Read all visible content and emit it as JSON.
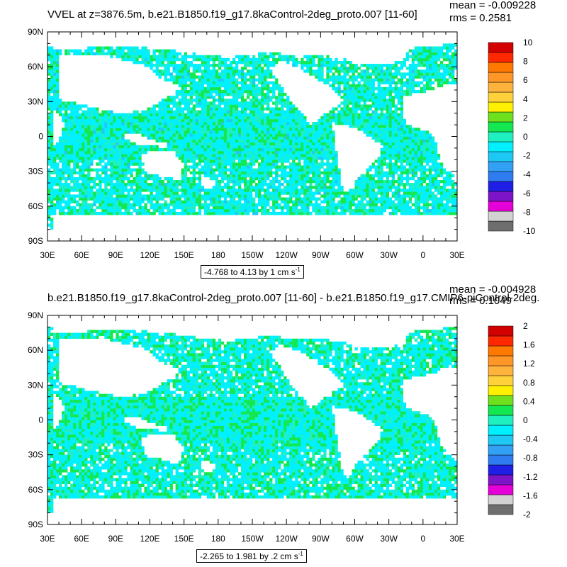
{
  "chart_data": [
    {
      "type": "heatmap",
      "title": "VVEL at z=3876.5m, b.e21.B1850.f19_g17.8kaControl-2deg_proto.007 [11-60]",
      "stats": {
        "mean": "mean = -0.009228",
        "rms": "rms = 0.2581"
      },
      "info_label": "-4.768 to 4.13 by 1 cm s",
      "info_sup": "-1",
      "x_ticks": [
        "30E",
        "60E",
        "90E",
        "120E",
        "150E",
        "180",
        "150W",
        "120W",
        "90W",
        "60W",
        "30W",
        "0",
        "30E"
      ],
      "y_ticks": [
        "90N",
        "60N",
        "30N",
        "0",
        "30S",
        "60S",
        "90S"
      ],
      "colorbar": {
        "colors": [
          "#6e6e6e",
          "#d2d2d2",
          "#e600d8",
          "#7e14c8",
          "#1f1fe6",
          "#2f7cf0",
          "#32a0f5",
          "#1ec8f5",
          "#00f0ff",
          "#1ef0c0",
          "#14e850",
          "#6ee01e",
          "#fff000",
          "#ffd23c",
          "#ffb23c",
          "#ff9628",
          "#ff7800",
          "#ff2800",
          "#d20000"
        ],
        "labels": [
          "10",
          "8",
          "6",
          "4",
          "2",
          "0",
          "-2",
          "-4",
          "-6",
          "-8",
          "-10"
        ]
      },
      "fill_colors": [
        "#00f0ff",
        "#1ef0c0",
        "#14e850",
        "#1ec8f5"
      ],
      "range": [
        -4.768,
        4.13
      ]
    },
    {
      "type": "heatmap",
      "title": "b.e21.B1850.f19_g17.8kaControl-2deg_proto.007 [11-60] - b.e21.B1850.f19_g17.CMIP6-piControl-2deg.",
      "stats": {
        "mean": "mean = -0.004928",
        "rms": "rms = 0.1049"
      },
      "info_label": "-2.265 to 1.981 by .2 cm s",
      "info_sup": "-1",
      "x_ticks": [
        "30E",
        "60E",
        "90E",
        "120E",
        "150E",
        "180",
        "150W",
        "120W",
        "90W",
        "60W",
        "30W",
        "0",
        "30E"
      ],
      "y_ticks": [
        "90N",
        "60N",
        "30N",
        "0",
        "30S",
        "60S",
        "90S"
      ],
      "colorbar": {
        "colors": [
          "#6e6e6e",
          "#d2d2d2",
          "#e600d8",
          "#7e14c8",
          "#1f1fe6",
          "#2f7cf0",
          "#32a0f5",
          "#1ec8f5",
          "#00f0ff",
          "#1ef0c0",
          "#14e850",
          "#6ee01e",
          "#fff000",
          "#ffd23c",
          "#ffb23c",
          "#ff9628",
          "#ff7800",
          "#ff2800",
          "#d20000"
        ],
        "labels": [
          "2",
          "1.6",
          "1.2",
          "0.8",
          "0.4",
          "0",
          "-0.4",
          "-0.8",
          "-1.2",
          "-1.6",
          "-2"
        ]
      },
      "fill_colors": [
        "#00f0ff",
        "#1ef0c0",
        "#14e850"
      ],
      "range": [
        -2.265,
        1.981
      ]
    }
  ]
}
